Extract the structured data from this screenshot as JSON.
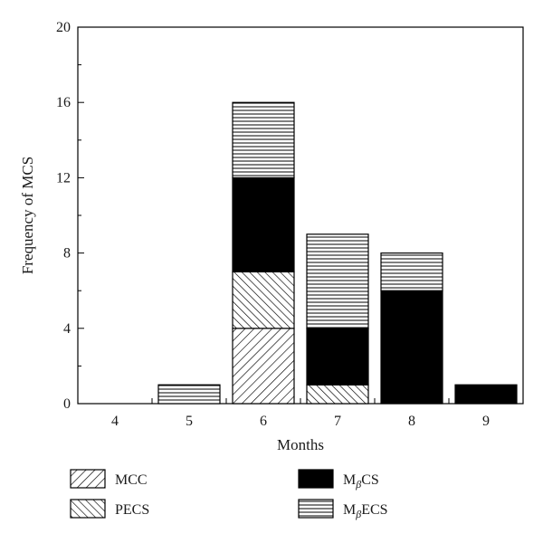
{
  "chart_data": {
    "type": "bar",
    "stacked": true,
    "categories": [
      "4",
      "5",
      "6",
      "7",
      "8",
      "9"
    ],
    "series": [
      {
        "name": "MCC",
        "pattern": "diag-forward",
        "values": [
          0,
          0,
          4,
          0,
          0,
          0
        ]
      },
      {
        "name": "PECS",
        "pattern": "diag-backward",
        "values": [
          0,
          0,
          3,
          1,
          0,
          0
        ]
      },
      {
        "name": "MβCS",
        "pattern": "solid",
        "color": "#000000",
        "values": [
          0,
          0,
          5,
          3,
          6,
          1
        ]
      },
      {
        "name": "MβECS",
        "pattern": "horizontal-lines",
        "values": [
          0,
          1,
          4,
          5,
          2,
          0
        ]
      }
    ],
    "legend": [
      {
        "base": "M",
        "sub": "",
        "rest": "CC"
      },
      {
        "base": "P",
        "sub": "",
        "rest": "ECS"
      },
      {
        "base": "M",
        "sub": "β",
        "rest": "CS"
      },
      {
        "base": "M",
        "sub": "β",
        "rest": "ECS"
      }
    ],
    "xlabel": "Months",
    "ylabel": "Frequency of MCS",
    "ylim": [
      0,
      20
    ],
    "yticks": [
      0,
      4,
      8,
      12,
      16,
      20
    ],
    "grid": false,
    "legend_position": "bottom"
  }
}
